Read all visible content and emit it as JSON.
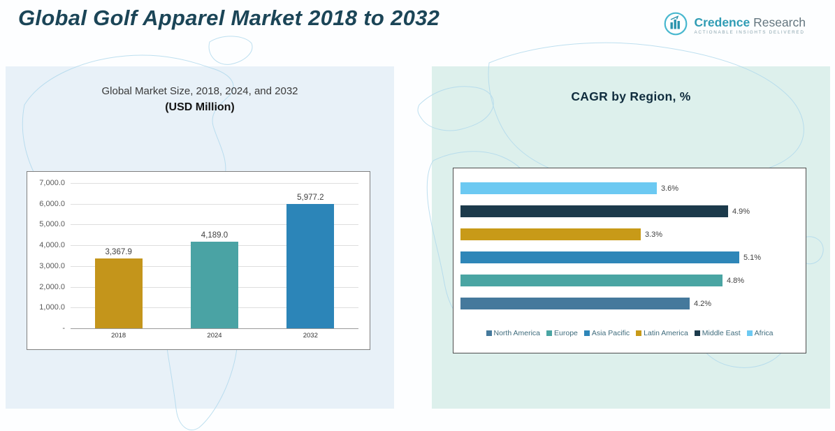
{
  "page": {
    "title": "Global Golf Apparel Market 2018 to 2032"
  },
  "logo": {
    "name_part1": "Credence",
    "name_part2": "Research",
    "tagline": "Actionable Insights Delivered"
  },
  "left_panel": {
    "title_line1": "Global Market Size, 2018, 2024, and 2032",
    "title_line2": "(USD Million)"
  },
  "right_panel": {
    "title": "CAGR by Region, %"
  },
  "chart_data": [
    {
      "type": "bar",
      "title": "Global Market Size, 2018, 2024, and 2032 (USD Million)",
      "categories": [
        "2018",
        "2024",
        "2032"
      ],
      "values": [
        3367.9,
        4189.0,
        5977.2
      ],
      "value_labels": [
        "3,367.9",
        "4,189.0",
        "5,977.2"
      ],
      "bar_colors": [
        "#C4951B",
        "#4AA3A4",
        "#2C85B8"
      ],
      "xlabel": "",
      "ylabel": "",
      "ylim": [
        0,
        7000
      ],
      "ytick_labels": [
        "7,000.0",
        "6,000.0",
        "5,000.0",
        "4,000.0",
        "3,000.0",
        "2,000.0",
        "1,000.0",
        "-"
      ],
      "grid": true,
      "legend_position": "none"
    },
    {
      "type": "bar",
      "orientation": "horizontal",
      "title": "CAGR by Region, %",
      "rows": [
        {
          "region": "Africa",
          "value": 3.6,
          "label": "3.6%",
          "color": "#6CC9F2"
        },
        {
          "region": "Middle East",
          "value": 4.9,
          "label": "4.9%",
          "color": "#1C3A4B"
        },
        {
          "region": "Latin America",
          "value": 3.3,
          "label": "3.3%",
          "color": "#C89A18"
        },
        {
          "region": "Asia Pacific",
          "value": 5.1,
          "label": "5.1%",
          "color": "#2E86B8"
        },
        {
          "region": "Europe",
          "value": 4.8,
          "label": "4.8%",
          "color": "#4AA5A3"
        },
        {
          "region": "North America",
          "value": 4.2,
          "label": "4.2%",
          "color": "#45799C"
        }
      ],
      "legend": [
        {
          "label": "North America",
          "color": "#45799C"
        },
        {
          "label": "Europe",
          "color": "#4AA5A3"
        },
        {
          "label": "Asia Pacific",
          "color": "#2E86B8"
        },
        {
          "label": "Latin America",
          "color": "#C89A18"
        },
        {
          "label": "Middle East",
          "color": "#1C3A4B"
        },
        {
          "label": "Africa",
          "color": "#6CC9F2"
        }
      ],
      "xlim": [
        0,
        5.5
      ],
      "grid": false,
      "legend_position": "bottom"
    }
  ]
}
